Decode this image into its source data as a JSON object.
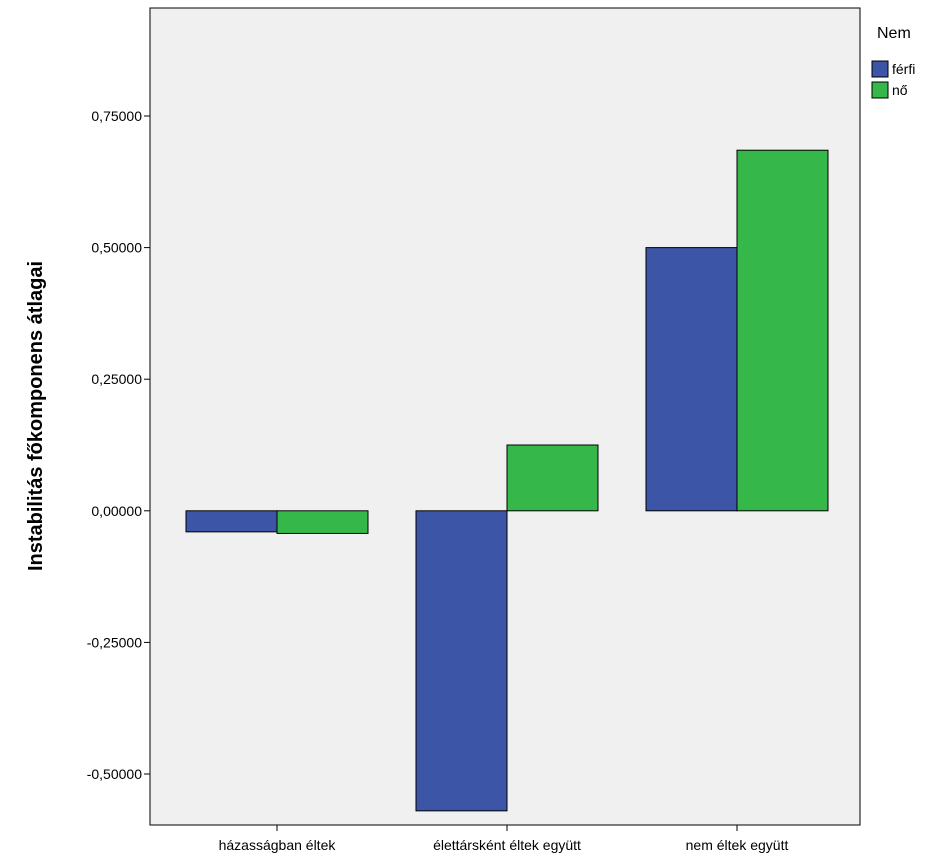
{
  "chart_data": {
    "type": "bar",
    "categories": [
      "házasságban éltek",
      "élettársként éltek együtt",
      "nem éltek együtt"
    ],
    "series": [
      {
        "name": "férfi",
        "values": [
          -0.04,
          -0.57,
          0.5
        ]
      },
      {
        "name": "nő",
        "values": [
          -0.043,
          0.125,
          0.685
        ]
      }
    ],
    "title": "",
    "xlabel": "",
    "ylabel": "Instabilitás főkomponens átlagai",
    "ylim": [
      -0.59,
      0.95
    ],
    "yticks": [
      -0.5,
      -0.25,
      0.0,
      0.25,
      0.5,
      0.75
    ],
    "ytick_labels": [
      "-0,50000",
      "-0,25000",
      "0,00000",
      "0,25000",
      "0,50000",
      "0,75000"
    ],
    "legend": {
      "title": "Nem",
      "placement": "top-right outside"
    },
    "grid": false,
    "colors": {
      "férfi": "#3d55a6",
      "nő": "#35b849",
      "plot_background": "#f0f0f0"
    }
  }
}
